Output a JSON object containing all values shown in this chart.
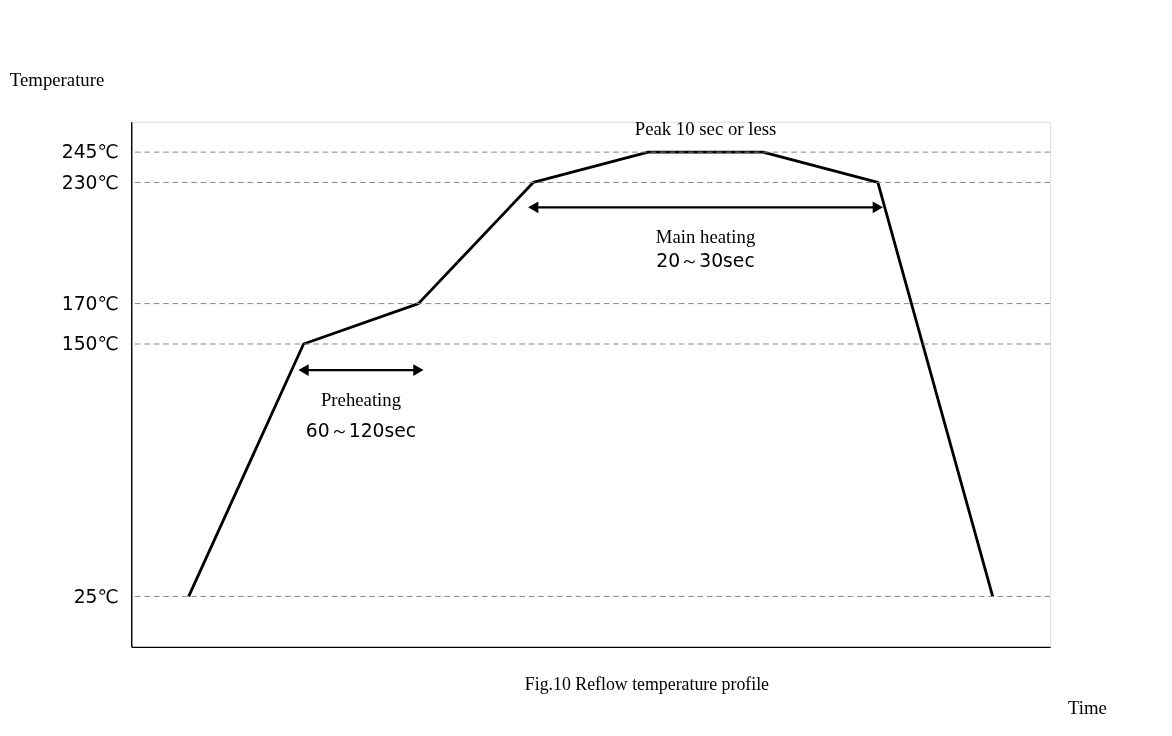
{
  "chart_data": {
    "type": "line",
    "ylabel": "Temperature",
    "xlabel": "Time",
    "categories": [
      null,
      null,
      null,
      null,
      null,
      null,
      null,
      null
    ],
    "series": [
      {
        "color": "#000000",
        "values": [
          25,
          150,
          170,
          230,
          245,
          245,
          230,
          25
        ]
      }
    ],
    "ylim": [
      0,
      260
    ],
    "yticks": [
      {
        "value": 25,
        "label": "25℃"
      },
      {
        "value": 150,
        "label": "150℃"
      },
      {
        "value": 170,
        "label": "170℃"
      },
      {
        "value": 230,
        "label": "230℃"
      },
      {
        "value": 245,
        "label": "245℃"
      }
    ],
    "tick_labels": "y",
    "grid": false,
    "legend": false,
    "line_style": "solid",
    "marker": "none",
    "ref_lines": [
      {
        "axis": "y",
        "value": 25,
        "color": "#808080",
        "line_style": "dashed"
      },
      {
        "axis": "y",
        "value": 150,
        "color": "#808080",
        "line_style": "dashed"
      },
      {
        "axis": "y",
        "value": 170,
        "color": "#808080",
        "line_style": "dashed"
      },
      {
        "axis": "y",
        "value": 230,
        "color": "#808080",
        "line_style": "dashed"
      },
      {
        "axis": "y",
        "value": 245,
        "color": "#808080",
        "line_style": "dashed"
      }
    ],
    "annotations": [
      "Preheating",
      "60～120sec",
      "Main heating",
      "20～30sec",
      "Peak 10 sec or less",
      "Fig.10 Reflow temperature profile"
    ]
  }
}
